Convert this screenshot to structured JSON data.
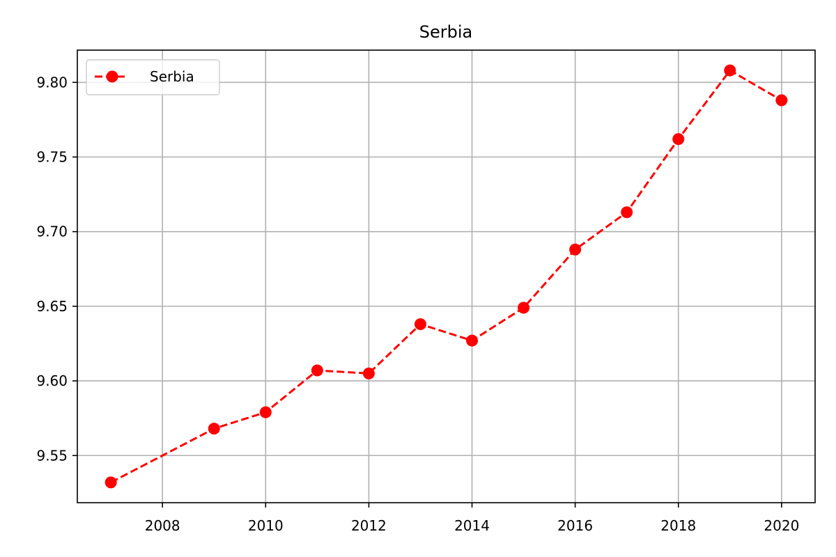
{
  "chart_data": {
    "type": "line",
    "title": "Serbia",
    "xlabel": "",
    "ylabel": "",
    "x": [
      2007,
      2009,
      2010,
      2011,
      2012,
      2013,
      2014,
      2015,
      2016,
      2017,
      2018,
      2019,
      2020
    ],
    "series": [
      {
        "name": "Serbia",
        "values": [
          9.532,
          9.568,
          9.579,
          9.607,
          9.605,
          9.638,
          9.627,
          9.649,
          9.688,
          9.713,
          9.762,
          9.808,
          9.788
        ],
        "color": "#ff0000",
        "line_style": "dashed",
        "marker": "circle"
      }
    ],
    "xlim": [
      2006.35,
      2020.65
    ],
    "ylim": [
      9.5184,
      9.8216
    ],
    "x_ticks": [
      2008,
      2010,
      2012,
      2014,
      2016,
      2018,
      2020
    ],
    "y_ticks": [
      9.55,
      9.6,
      9.65,
      9.7,
      9.75,
      9.8
    ],
    "x_tick_labels": [
      "2008",
      "2010",
      "2012",
      "2014",
      "2016",
      "2018",
      "2020"
    ],
    "y_tick_labels": [
      "9.55",
      "9.60",
      "9.65",
      "9.70",
      "9.75",
      "9.80"
    ],
    "grid": true,
    "legend_position": "upper-left"
  }
}
